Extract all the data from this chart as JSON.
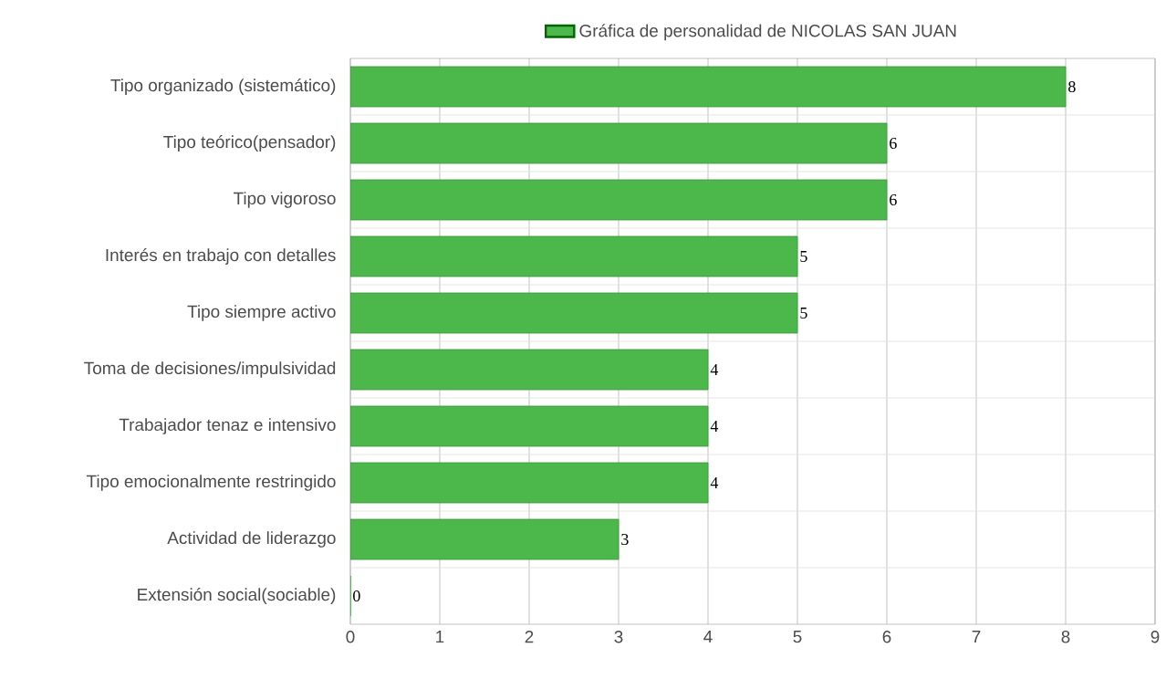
{
  "chart_data": {
    "type": "bar",
    "orientation": "horizontal",
    "categories": [
      "Tipo organizado (sistemático)",
      "Tipo teórico(pensador)",
      "Tipo vigoroso",
      "Interés en trabajo con detalles",
      "Tipo siempre activo",
      "Toma de decisiones/impulsividad",
      "Trabajador tenaz e intensivo",
      "Tipo emocionalmente restringido",
      "Actividad de liderazgo",
      "Extensión social(sociable)"
    ],
    "series": [
      {
        "name": "Gráfica de personalidad de NICOLAS SAN JUAN",
        "color": "#4cb84c",
        "values": [
          8,
          6,
          6,
          5,
          5,
          4,
          4,
          4,
          3,
          0
        ]
      }
    ],
    "xlim": [
      0,
      9
    ],
    "xticks": [
      0,
      1,
      2,
      3,
      4,
      5,
      6,
      7,
      8,
      9
    ],
    "grid": true,
    "legend": "top",
    "data_labels": true
  }
}
